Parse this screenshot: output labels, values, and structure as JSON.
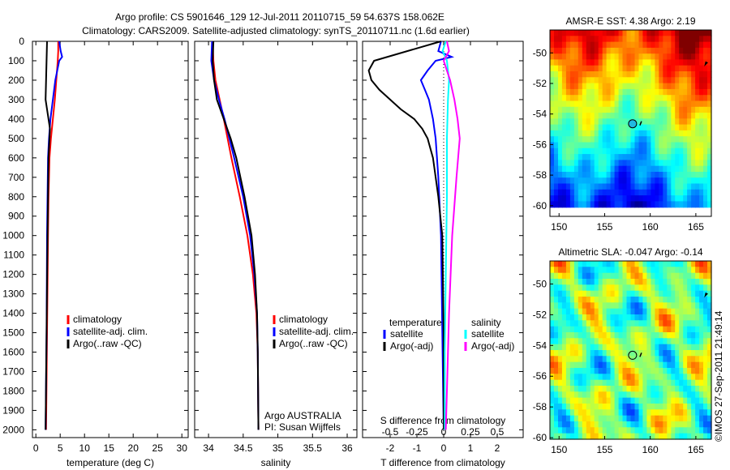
{
  "title": {
    "line1": "Argo profile: CS 5901646_129 12-Jul-2011 20110715_59 54.637S 158.062E",
    "line2": "Climatology: CARS2009. Satellite-adjusted climatology: synTS_20110711.nc (1.6d earlier)"
  },
  "colors": {
    "climatology": "#ff0000",
    "satellite": "#0000ff",
    "argo": "#000000",
    "sal_satellite": "#00ffff",
    "sal_argo": "#ff00ff"
  },
  "chart_data": [
    {
      "type": "line",
      "xlabel": "temperature (deg C)",
      "xlim": [
        -0.7,
        31.3
      ],
      "ylim": [
        0,
        2040
      ],
      "yreversed": true,
      "xticks": [
        0,
        5,
        10,
        15,
        20,
        25,
        30
      ],
      "yticks": [
        0,
        100,
        200,
        300,
        400,
        500,
        600,
        700,
        800,
        900,
        1000,
        1100,
        1200,
        1300,
        1400,
        1500,
        1600,
        1700,
        1800,
        1900,
        2000
      ],
      "legend": [
        "climatology",
        "satellite-adj. clim.",
        "Argo(..raw -QC)"
      ],
      "series": [
        {
          "name": "climatology",
          "color": "#ff0000",
          "depth": [
            0,
            50,
            100,
            200,
            300,
            400,
            500,
            600,
            800,
            1000,
            1500,
            2000
          ],
          "values": [
            4.6,
            4.6,
            4.5,
            4.2,
            3.9,
            3.5,
            3.1,
            2.8,
            2.6,
            2.5,
            2.3,
            2.1
          ]
        },
        {
          "name": "satellite-adj. clim.",
          "color": "#0000ff",
          "depth": [
            0,
            50,
            80,
            100,
            200,
            300,
            400,
            500,
            600,
            800,
            1000,
            1500,
            2000
          ],
          "values": [
            4.8,
            5.1,
            5.4,
            4.8,
            4.0,
            3.5,
            3.0,
            2.7,
            2.5,
            2.4,
            2.3,
            2.2,
            2.0
          ]
        },
        {
          "name": "Argo(..raw -QC)",
          "color": "#000000",
          "depth": [
            0,
            100,
            200,
            300,
            350,
            400,
            450,
            500,
            600,
            800,
            1000,
            1500,
            2000
          ],
          "values": [
            2.3,
            2.2,
            2.1,
            2.0,
            2.3,
            2.6,
            2.9,
            2.8,
            2.6,
            2.5,
            2.4,
            2.2,
            2.0
          ]
        }
      ]
    },
    {
      "type": "line",
      "xlabel": "salinity",
      "xlim": [
        33.8,
        36.14
      ],
      "ylim": [
        0,
        2040
      ],
      "yreversed": true,
      "xticks": [
        34,
        34.5,
        35,
        35.5,
        36
      ],
      "xticklabels": [
        "34",
        "34.5",
        "35",
        "35.5",
        "36"
      ],
      "legend": [
        "climatology",
        "satellite-adj. clim.",
        "Argo(..raw -QC)"
      ],
      "annotation": [
        "Argo AUSTRALIA",
        "PI: Susan Wijffels"
      ],
      "series": [
        {
          "name": "climatology",
          "color": "#ff0000",
          "depth": [
            0,
            100,
            200,
            300,
            400,
            600,
            800,
            1000,
            1200,
            1400,
            1600,
            2000
          ],
          "values": [
            34.06,
            34.07,
            34.1,
            34.16,
            34.22,
            34.33,
            34.45,
            34.56,
            34.64,
            34.69,
            34.71,
            34.72
          ]
        },
        {
          "name": "satellite-adj. clim.",
          "color": "#0000ff",
          "depth": [
            0,
            100,
            200,
            300,
            400,
            600,
            800,
            1000,
            1200,
            1400,
            1600,
            2000
          ],
          "values": [
            34.05,
            34.04,
            34.08,
            34.15,
            34.23,
            34.37,
            34.5,
            34.6,
            34.66,
            34.7,
            34.71,
            34.72
          ]
        },
        {
          "name": "Argo(..raw -QC)",
          "color": "#000000",
          "depth": [
            0,
            100,
            200,
            300,
            400,
            500,
            600,
            800,
            1000,
            1200,
            1400,
            1600,
            2000
          ],
          "values": [
            34.07,
            34.06,
            34.08,
            34.12,
            34.22,
            34.32,
            34.4,
            34.52,
            34.62,
            34.67,
            34.7,
            34.71,
            34.72
          ]
        }
      ]
    },
    {
      "type": "line",
      "xlabel": "T difference from climatology",
      "x2label": "S difference from climatology",
      "xlim": [
        -3.03,
        2.97
      ],
      "ylim": [
        0,
        2040
      ],
      "yreversed": true,
      "xticks": [
        -2,
        -1,
        0,
        1,
        2
      ],
      "x2ticks": [
        -0.5,
        -0.25,
        0,
        0.25,
        0.5
      ],
      "x2ticklabels": [
        "-0.5",
        "-0.25",
        "0",
        "0.25",
        "0.5"
      ],
      "legend_headers": [
        "temperature",
        "salinity"
      ],
      "legend": [
        "satellite",
        "Argo(-adj)",
        "satellite",
        "Argo(-adj)"
      ],
      "series": [
        {
          "name": "T satellite",
          "color": "#0000ff",
          "units": "T",
          "depth": [
            0,
            50,
            80,
            100,
            150,
            200,
            250,
            300,
            400,
            500,
            700,
            1000,
            1500,
            2000
          ],
          "values": [
            -0.1,
            -0.2,
            0.3,
            -0.3,
            -0.6,
            -0.85,
            -0.7,
            -0.55,
            -0.4,
            -0.3,
            -0.2,
            -0.1,
            -0.05,
            0
          ]
        },
        {
          "name": "T Argo(-adj)",
          "color": "#000000",
          "units": "T",
          "depth": [
            0,
            100,
            150,
            200,
            250,
            300,
            350,
            400,
            450,
            500,
            600,
            700,
            800,
            1000,
            1500,
            2000
          ],
          "values": [
            -0.1,
            -2.6,
            -2.8,
            -2.7,
            -2.4,
            -2.0,
            -1.6,
            -1.1,
            -0.8,
            -0.6,
            -0.4,
            -0.3,
            -0.2,
            -0.05,
            0,
            0
          ]
        },
        {
          "name": "S satellite",
          "color": "#00ffff",
          "units": "S",
          "depth": [
            0,
            50,
            100,
            200,
            300,
            500,
            800,
            1200,
            1600,
            2000
          ],
          "values": [
            0.02,
            -0.01,
            0.03,
            0.05,
            0.04,
            0.03,
            0.03,
            0.02,
            0.01,
            0.01
          ]
        },
        {
          "name": "S Argo(-adj)",
          "color": "#ff00ff",
          "units": "S",
          "depth": [
            0,
            50,
            100,
            150,
            200,
            300,
            400,
            500,
            700,
            1000,
            1400,
            1800,
            2000
          ],
          "values": [
            0.03,
            0.05,
            0.0,
            0.03,
            0.06,
            0.1,
            0.13,
            0.15,
            0.12,
            0.08,
            0.05,
            0.03,
            0.02
          ]
        }
      ]
    },
    {
      "type": "heatmap",
      "title": "AMSR-E SST: 4.38 Argo: 2.19",
      "xlim": [
        149,
        166.7
      ],
      "ylim": [
        -60.7,
        -48.5
      ],
      "xticks": [
        150,
        155,
        160,
        165
      ],
      "yticks": [
        -50,
        -52,
        -54,
        -56,
        -58,
        -60
      ],
      "marker": {
        "lon": 158.062,
        "lat": -54.637
      }
    },
    {
      "type": "heatmap",
      "title": "Altimetric SLA: -0.047 Argo: -0.14",
      "xlim": [
        149,
        166.7
      ],
      "ylim": [
        -60.1,
        -48.5
      ],
      "xticks": [
        150,
        155,
        160,
        165
      ],
      "yticks": [
        -50,
        -52,
        -54,
        -56,
        -58,
        -60
      ],
      "marker": {
        "lon": 158.062,
        "lat": -54.637
      }
    }
  ],
  "footer": "©IMOS 27-Sep-2011 21:49:14"
}
